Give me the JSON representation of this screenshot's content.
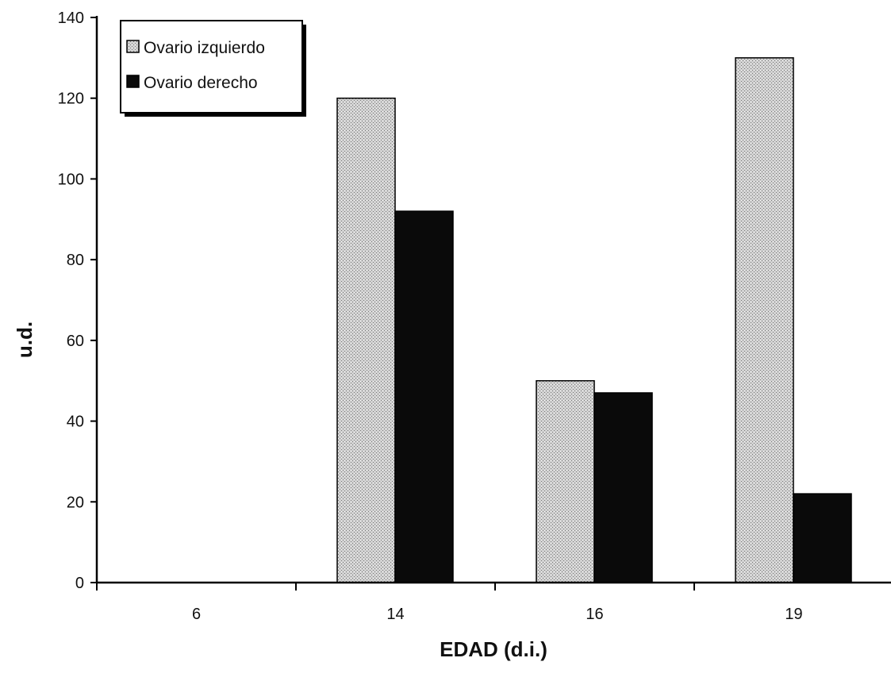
{
  "chart_data": {
    "type": "bar",
    "title": "",
    "xlabel": "EDAD (d.i.)",
    "ylabel": "u.d.",
    "categories": [
      "6",
      "14",
      "16",
      "19"
    ],
    "series": [
      {
        "name": "Ovario izquierdo",
        "values": [
          0,
          120,
          50,
          130
        ],
        "color": "#c8c8c8",
        "pattern": "stipple-light"
      },
      {
        "name": "Ovario derecho",
        "values": [
          0,
          92,
          47,
          22
        ],
        "color": "#0a0a0a",
        "pattern": "solid-dark"
      }
    ],
    "ylim": [
      0,
      140
    ],
    "yticks": [
      "0",
      "20",
      "40",
      "60",
      "80",
      "100",
      "120",
      "140"
    ],
    "grid": false,
    "legend_position": "top-left"
  }
}
